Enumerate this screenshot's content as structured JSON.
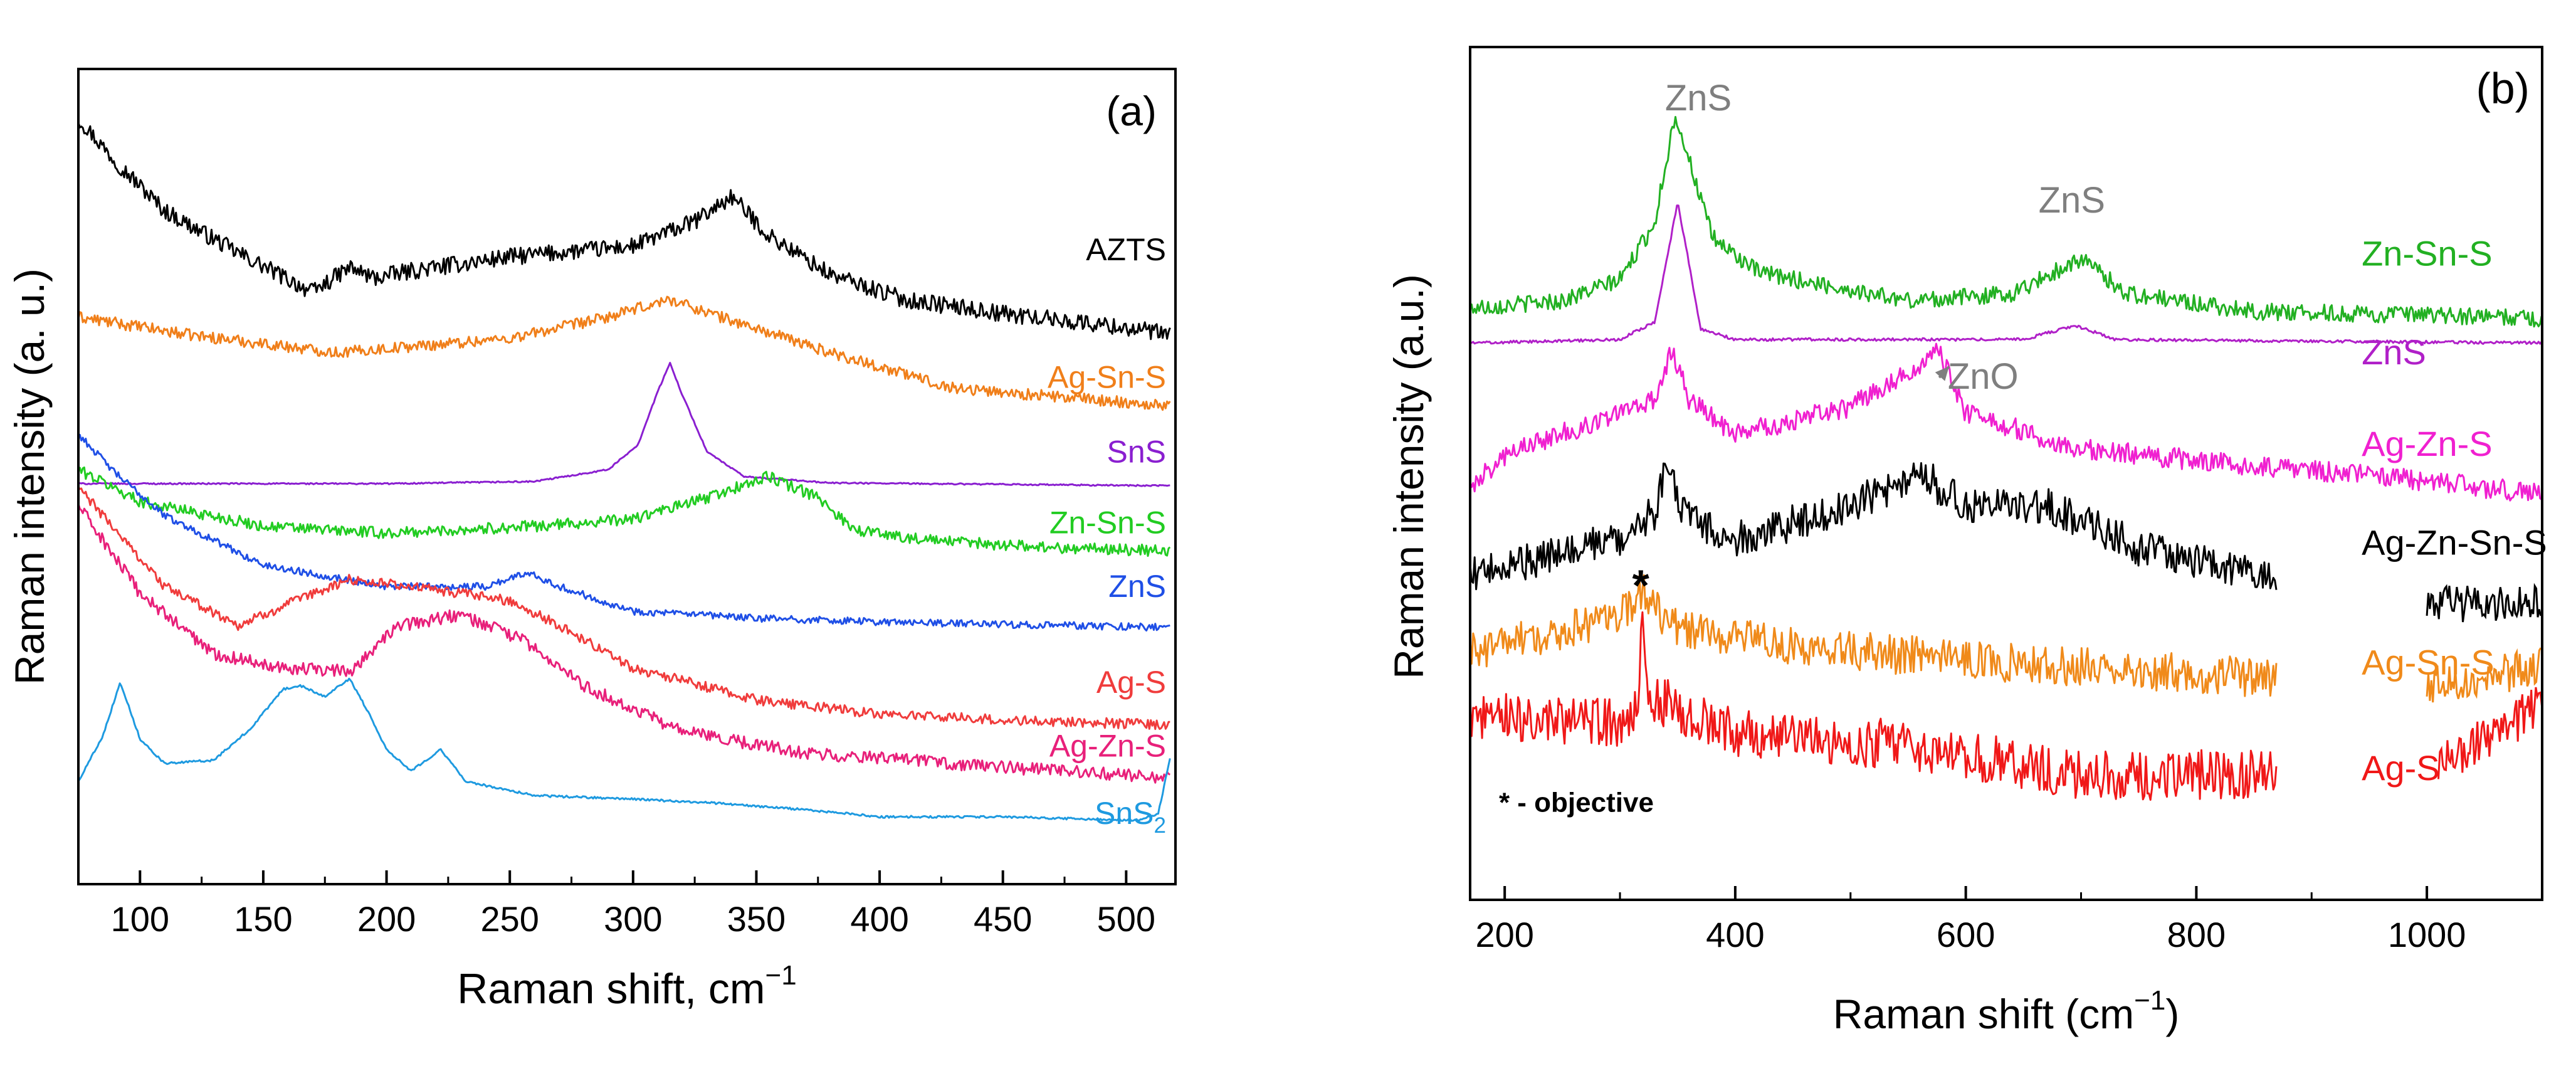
{
  "chart_data": [
    {
      "panel_label": "(a)",
      "type": "line",
      "xlabel": "Raman shift, cm",
      "xlabel_sup": "−1",
      "ylabel": "Raman intensity (a. u.)",
      "xlim": [
        75,
        520
      ],
      "ylim": [
        0,
        10
      ],
      "xticks": [
        100,
        150,
        200,
        250,
        300,
        350,
        400,
        450,
        500
      ],
      "series": [
        {
          "name": "AZTS",
          "color": "#000000",
          "label_x": 345,
          "label_y": 7.9,
          "noise": 0.12,
          "points": [
            [
              75,
              9.9
            ],
            [
              90,
              9.3
            ],
            [
              110,
              8.6
            ],
            [
              140,
              8.0
            ],
            [
              170,
              7.45
            ],
            [
              185,
              7.8
            ],
            [
              195,
              7.65
            ],
            [
              210,
              7.75
            ],
            [
              250,
              7.95
            ],
            [
              300,
              8.1
            ],
            [
              325,
              8.45
            ],
            [
              340,
              8.8
            ],
            [
              355,
              8.25
            ],
            [
              380,
              7.7
            ],
            [
              410,
              7.35
            ],
            [
              450,
              7.15
            ],
            [
              500,
              6.95
            ],
            [
              518,
              6.85
            ]
          ]
        },
        {
          "name": "Ag-Sn-S",
          "color": "#F07F1A",
          "label_x": 345,
          "label_y": 6.1,
          "noise": 0.08,
          "points": [
            [
              75,
              7.1
            ],
            [
              120,
              6.85
            ],
            [
              180,
              6.6
            ],
            [
              250,
              6.8
            ],
            [
              290,
              7.1
            ],
            [
              315,
              7.35
            ],
            [
              340,
              7.05
            ],
            [
              380,
              6.6
            ],
            [
              430,
              6.1
            ],
            [
              480,
              5.95
            ],
            [
              518,
              5.85
            ]
          ]
        },
        {
          "name": "SnS",
          "color": "#8A1FD0",
          "label_x": 345,
          "label_y": 5.05,
          "noise": 0.01,
          "points": [
            [
              75,
              4.75
            ],
            [
              200,
              4.75
            ],
            [
              260,
              4.78
            ],
            [
              290,
              4.95
            ],
            [
              302,
              5.3
            ],
            [
              310,
              6.05
            ],
            [
              315,
              6.45
            ],
            [
              320,
              6.0
            ],
            [
              330,
              5.2
            ],
            [
              345,
              4.85
            ],
            [
              380,
              4.76
            ],
            [
              518,
              4.72
            ]
          ]
        },
        {
          "name": "Zn-Sn-S",
          "color": "#22CC22",
          "label_x": 345,
          "label_y": 4.05,
          "noise": 0.08,
          "points": [
            [
              75,
              4.95
            ],
            [
              100,
              4.5
            ],
            [
              150,
              4.15
            ],
            [
              200,
              4.05
            ],
            [
              260,
              4.15
            ],
            [
              300,
              4.25
            ],
            [
              330,
              4.55
            ],
            [
              355,
              4.85
            ],
            [
              375,
              4.55
            ],
            [
              390,
              4.1
            ],
            [
              420,
              3.95
            ],
            [
              470,
              3.85
            ],
            [
              518,
              3.8
            ]
          ]
        },
        {
          "name": "ZnS",
          "color": "#1F4FE6",
          "label_x": 345,
          "label_y": 3.15,
          "noise": 0.05,
          "points": [
            [
              75,
              5.45
            ],
            [
              90,
              4.9
            ],
            [
              110,
              4.3
            ],
            [
              150,
              3.6
            ],
            [
              200,
              3.3
            ],
            [
              240,
              3.3
            ],
            [
              258,
              3.5
            ],
            [
              270,
              3.3
            ],
            [
              300,
              2.95
            ],
            [
              350,
              2.85
            ],
            [
              400,
              2.8
            ],
            [
              518,
              2.72
            ]
          ]
        },
        {
          "name": "Ag-S",
          "color": "#F03C3C",
          "label_x": 345,
          "label_y": 1.8,
          "noise": 0.07,
          "points": [
            [
              75,
              4.7
            ],
            [
              110,
              3.3
            ],
            [
              140,
              2.75
            ],
            [
              160,
              3.05
            ],
            [
              185,
              3.4
            ],
            [
              210,
              3.3
            ],
            [
              250,
              3.1
            ],
            [
              270,
              2.75
            ],
            [
              300,
              2.15
            ],
            [
              350,
              1.7
            ],
            [
              400,
              1.5
            ],
            [
              460,
              1.4
            ],
            [
              518,
              1.35
            ]
          ]
        },
        {
          "name": "Ag-Zn-S",
          "color": "#E8207A",
          "label_x": 345,
          "label_y": 0.9,
          "noise": 0.09,
          "points": [
            [
              75,
              4.45
            ],
            [
              100,
              3.2
            ],
            [
              130,
              2.35
            ],
            [
              160,
              2.15
            ],
            [
              185,
              2.1
            ],
            [
              205,
              2.75
            ],
            [
              230,
              2.9
            ],
            [
              255,
              2.55
            ],
            [
              280,
              1.9
            ],
            [
              320,
              1.25
            ],
            [
              370,
              0.95
            ],
            [
              450,
              0.75
            ],
            [
              518,
              0.6
            ]
          ]
        },
        {
          "name": "SnS",
          "sub": "2",
          "color": "#1E9AE0",
          "label_x": 345,
          "label_y": -0.05,
          "noise": 0.015,
          "points": [
            [
              75,
              0.55
            ],
            [
              85,
              1.2
            ],
            [
              92,
              1.95
            ],
            [
              100,
              1.15
            ],
            [
              110,
              0.8
            ],
            [
              130,
              0.85
            ],
            [
              145,
              1.3
            ],
            [
              158,
              1.85
            ],
            [
              165,
              1.9
            ],
            [
              175,
              1.75
            ],
            [
              185,
              2.0
            ],
            [
              193,
              1.5
            ],
            [
              200,
              1.0
            ],
            [
              210,
              0.7
            ],
            [
              222,
              1.0
            ],
            [
              232,
              0.55
            ],
            [
              260,
              0.35
            ],
            [
              300,
              0.3
            ],
            [
              330,
              0.25
            ],
            [
              370,
              0.15
            ],
            [
              400,
              0.05
            ],
            [
              450,
              0.05
            ],
            [
              505,
              0.0
            ],
            [
              513,
              0.1
            ],
            [
              518,
              0.9
            ]
          ]
        }
      ]
    },
    {
      "panel_label": "(b)",
      "type": "line",
      "xlabel": "Raman shift (cm",
      "xlabel_sup": "−1",
      "xlabel_end": ")",
      "ylabel": "Raman intensity (a.u.)",
      "xlim": [
        170,
        1100
      ],
      "ylim": [
        0,
        10
      ],
      "xticks": [
        200,
        400,
        600,
        800,
        1000
      ],
      "series": [
        {
          "name": "Zn-Sn-S",
          "color": "#22B022",
          "label_x": 870,
          "label_y": 7.8,
          "noise": 0.12,
          "points": [
            [
              170,
              7.2
            ],
            [
              250,
              7.3
            ],
            [
              300,
              7.6
            ],
            [
              330,
              8.4
            ],
            [
              348,
              9.95
            ],
            [
              360,
              9.3
            ],
            [
              380,
              8.2
            ],
            [
              420,
              7.7
            ],
            [
              550,
              7.3
            ],
            [
              640,
              7.4
            ],
            [
              700,
              7.9
            ],
            [
              740,
              7.4
            ],
            [
              850,
              7.15
            ],
            [
              1100,
              7.05
            ]
          ]
        },
        {
          "name": "ZnS",
          "color": "#B020C8",
          "label_x": 870,
          "label_y": 6.4,
          "noise": 0.02,
          "points": [
            [
              170,
              6.7
            ],
            [
              300,
              6.75
            ],
            [
              330,
              7.0
            ],
            [
              342,
              8.0
            ],
            [
              350,
              8.7
            ],
            [
              358,
              8.0
            ],
            [
              370,
              6.9
            ],
            [
              400,
              6.75
            ],
            [
              650,
              6.75
            ],
            [
              695,
              6.95
            ],
            [
              730,
              6.75
            ],
            [
              1100,
              6.7
            ]
          ]
        },
        {
          "name": "Ag-Zn-S",
          "color": "#F020D0",
          "label_x": 870,
          "label_y": 5.1,
          "noise": 0.15,
          "points": [
            [
              170,
              4.65
            ],
            [
              200,
              5.1
            ],
            [
              280,
              5.6
            ],
            [
              330,
              5.9
            ],
            [
              345,
              6.6
            ],
            [
              360,
              5.9
            ],
            [
              400,
              5.4
            ],
            [
              500,
              5.8
            ],
            [
              560,
              6.4
            ],
            [
              575,
              6.65
            ],
            [
              600,
              5.7
            ],
            [
              700,
              5.2
            ],
            [
              850,
              4.95
            ],
            [
              1000,
              4.75
            ],
            [
              1100,
              4.55
            ]
          ]
        },
        {
          "name": "Ag-Zn-Sn-S",
          "color": "#000000",
          "label_x": 870,
          "label_y": 3.7,
          "noise": 0.26,
          "points": [
            [
              170,
              3.4
            ],
            [
              250,
              3.7
            ],
            [
              310,
              4.0
            ],
            [
              330,
              4.3
            ],
            [
              342,
              5.05
            ],
            [
              355,
              4.3
            ],
            [
              400,
              3.9
            ],
            [
              500,
              4.4
            ],
            [
              560,
              4.85
            ],
            [
              600,
              4.4
            ],
            [
              670,
              4.4
            ],
            [
              750,
              3.8
            ],
            [
              860,
              3.4
            ],
            [
              870,
              3.4
            ]
          ]
        },
        {
          "name": "Ag-Sn-S",
          "color": "#F08A1A",
          "label_x": 870,
          "label_y": 2.0,
          "noise": 0.28,
          "points": [
            [
              170,
              2.3
            ],
            [
              250,
              2.6
            ],
            [
              300,
              2.85
            ],
            [
              320,
              3.2
            ],
            [
              340,
              2.7
            ],
            [
              450,
              2.4
            ],
            [
              600,
              2.2
            ],
            [
              800,
              2.0
            ],
            [
              870,
              1.95
            ]
          ]
        },
        {
          "name": "Ag-S",
          "color": "#F01818",
          "label_x": 870,
          "label_y": 0.5,
          "noise": 0.35,
          "points": [
            [
              170,
              1.4
            ],
            [
              300,
              1.3
            ],
            [
              315,
              1.5
            ],
            [
              320,
              2.9
            ],
            [
              325,
              1.7
            ],
            [
              400,
              1.15
            ],
            [
              550,
              1.0
            ],
            [
              700,
              0.55
            ],
            [
              870,
              0.6
            ]
          ]
        }
      ],
      "tail_segments": [
        {
          "series": "Ag-Zn-Sn-S",
          "from": 1000,
          "to": 1100,
          "y0": 3.0,
          "y1": 3.0
        },
        {
          "series": "Ag-Sn-S",
          "from": 1000,
          "to": 1100,
          "y0": 1.85,
          "y1": 2.1
        },
        {
          "series": "Ag-S",
          "from": 1010,
          "to": 1100,
          "y0": 0.7,
          "y1": 1.6
        }
      ],
      "annotations": [
        {
          "text": "ZnS",
          "x": 368,
          "y": 10.0,
          "color": "#7F7F7F"
        },
        {
          "text": "ZnS",
          "x": 692,
          "y": 8.55,
          "color": "#7F7F7F"
        },
        {
          "text": "ZnO",
          "x": 615,
          "y": 6.05,
          "color": "#7F7F7F",
          "arrow_to_x": 580,
          "arrow_to_y": 6.5
        },
        {
          "text": "*",
          "x": 318,
          "y": 3.05,
          "color": "#000000"
        },
        {
          "text": "* - objective",
          "x": 195,
          "y": 0.05,
          "color": "#000000"
        }
      ]
    }
  ]
}
